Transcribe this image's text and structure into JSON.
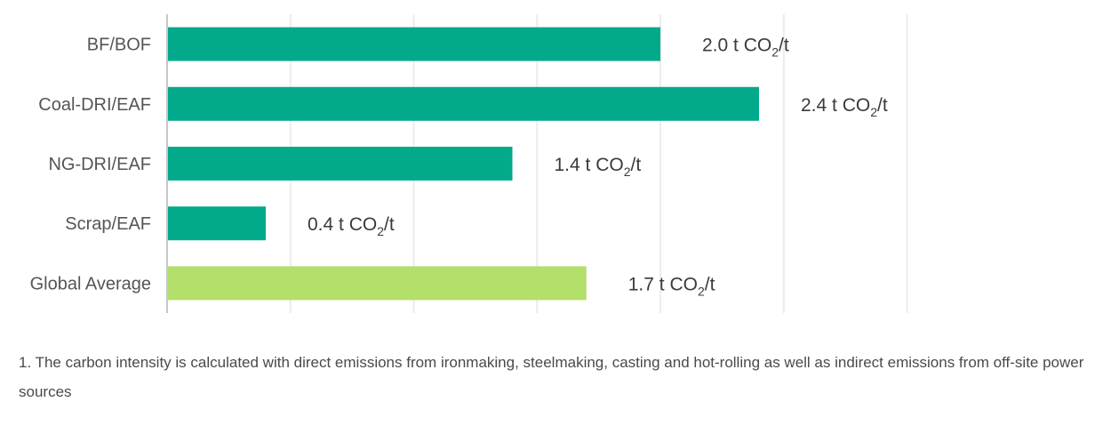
{
  "chart_data": {
    "type": "bar",
    "orientation": "horizontal",
    "categories": [
      "BF/BOF",
      "Coal-DRI/EAF",
      "NG-DRI/EAF",
      "Scrap/EAF",
      "Global Average"
    ],
    "values": [
      2.0,
      2.4,
      1.4,
      0.4,
      1.7
    ],
    "value_prefix_labels": [
      "2.0",
      "2.4",
      "1.4",
      "0.4",
      "1.7"
    ],
    "unit_parts": {
      "pre": " t CO",
      "sub": "2",
      "post": "/t"
    },
    "bar_colors": [
      "#02aa8b",
      "#02aa8b",
      "#02aa8b",
      "#02aa8b",
      "#b3df6b"
    ],
    "xlim": [
      0,
      3.0
    ],
    "grid": true,
    "title": "",
    "xlabel": "",
    "ylabel": ""
  },
  "footnote": "1. The carbon intensity is calculated with direct emissions from ironmaking, steelmaking, casting and hot-rolling as well as indirect emissions from off-site power sources"
}
